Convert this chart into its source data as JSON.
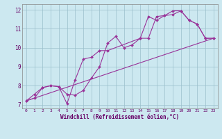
{
  "xlabel": "Windchill (Refroidissement éolien,°C)",
  "bg_color": "#cce8f0",
  "line_color": "#993399",
  "grid_color": "#9abfcc",
  "ylim": [
    6.8,
    12.3
  ],
  "xlim": [
    -0.5,
    23.5
  ],
  "yticks": [
    7,
    8,
    9,
    10,
    11,
    12
  ],
  "xticks": [
    0,
    1,
    2,
    3,
    4,
    5,
    6,
    7,
    8,
    9,
    10,
    11,
    12,
    13,
    14,
    15,
    16,
    17,
    18,
    19,
    20,
    21,
    22,
    23
  ],
  "line1_x": [
    0,
    1,
    2,
    3,
    4,
    5,
    6,
    7,
    8,
    9,
    10,
    11,
    12,
    13,
    14,
    15,
    16,
    17,
    18,
    19,
    20,
    21,
    22,
    23
  ],
  "line1_y": [
    7.2,
    7.55,
    7.9,
    8.0,
    7.95,
    7.55,
    7.5,
    7.75,
    8.4,
    9.0,
    10.25,
    10.6,
    10.0,
    10.15,
    10.5,
    11.65,
    11.45,
    11.7,
    11.95,
    11.95,
    11.45,
    11.25,
    10.5,
    10.5
  ],
  "line2_x": [
    0,
    1,
    2,
    3,
    4,
    5,
    6,
    7,
    8,
    9,
    10,
    14,
    15,
    16,
    17,
    18,
    19,
    20,
    21,
    22,
    23
  ],
  "line2_y": [
    7.2,
    7.35,
    7.9,
    8.0,
    7.95,
    7.05,
    8.3,
    9.4,
    9.5,
    9.85,
    9.85,
    10.5,
    10.5,
    11.65,
    11.7,
    11.75,
    11.95,
    11.45,
    11.25,
    10.5,
    10.5
  ],
  "line3_x": [
    0,
    23
  ],
  "line3_y": [
    7.2,
    10.5
  ]
}
